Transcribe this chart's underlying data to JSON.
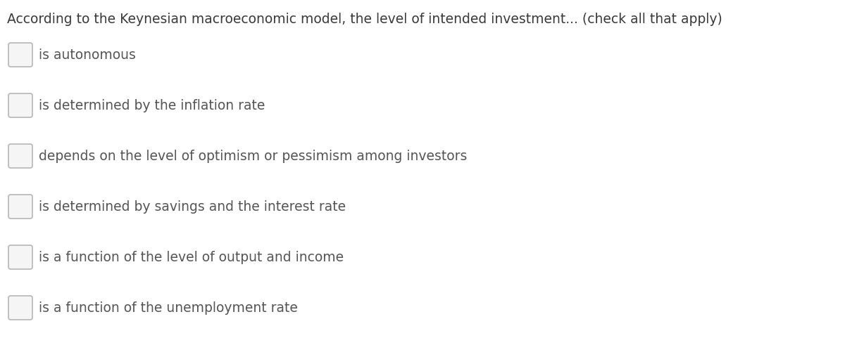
{
  "title": "According to the Keynesian macroeconomic model, the level of intended investment... (check all that apply)",
  "title_fontsize": 13.5,
  "title_color": "#3a3a3a",
  "options": [
    "is autonomous",
    "is determined by the inflation rate",
    "depends on the level of optimism or pessimism among investors",
    "is determined by savings and the interest rate",
    "is a function of the level of output and income",
    "is a function of the unemployment rate"
  ],
  "option_fontsize": 13.5,
  "option_color": "#555555",
  "background_color": "#ffffff",
  "checkbox_edge_color": "#bbbbbb",
  "checkbox_face_color": "#f5f5f5",
  "fig_width": 12.0,
  "fig_height": 4.91,
  "dpi": 100
}
